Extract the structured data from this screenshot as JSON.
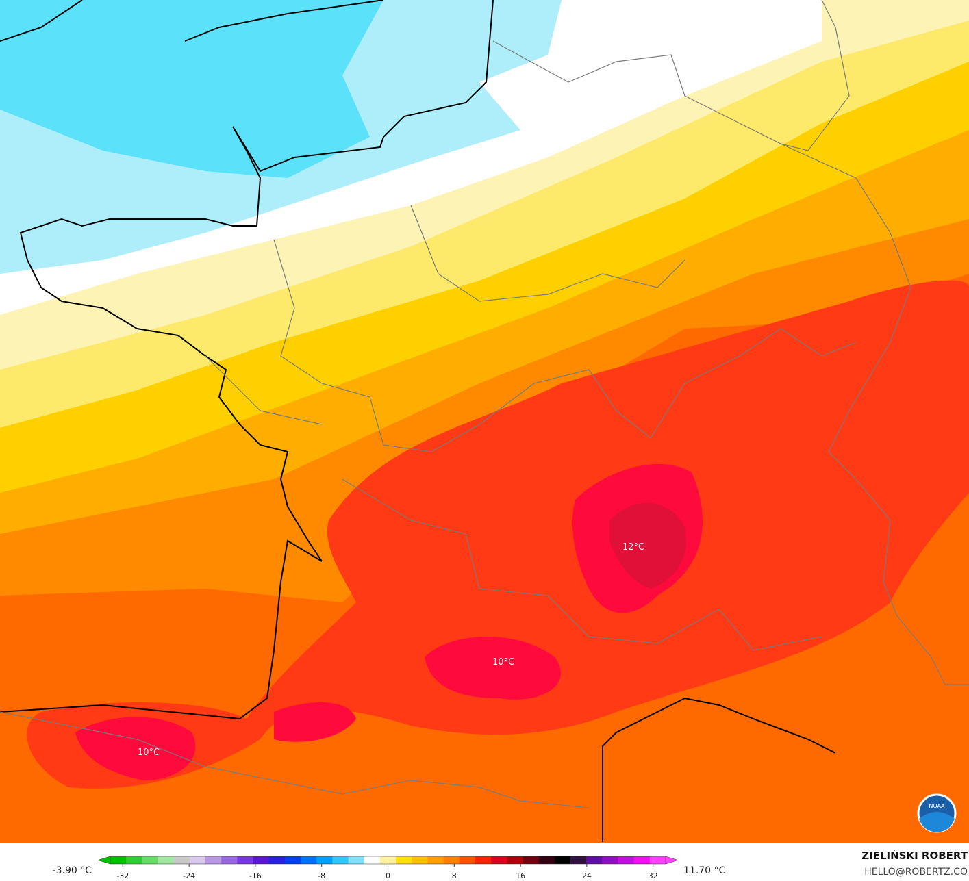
{
  "map": {
    "labels": [
      "12°C",
      "10°C",
      "10°C"
    ]
  },
  "colorbar": {
    "min_label": "-3.90 °C",
    "max_label": "11.70 °C",
    "range": [
      -35,
      35
    ],
    "ticks": [
      -32,
      -24,
      -16,
      -8,
      0,
      8,
      16,
      24,
      32
    ],
    "colors": [
      "#00c000",
      "#33cc33",
      "#66dd66",
      "#a0e6a0",
      "#c8c8c8",
      "#d8c8ec",
      "#b898e4",
      "#9868e0",
      "#7838e0",
      "#5a18d0",
      "#2a20e0",
      "#0040f0",
      "#0070ff",
      "#00a0ff",
      "#30c8ff",
      "#80e0ff",
      "#ffffff",
      "#fff0a0",
      "#ffe000",
      "#ffc000",
      "#ffa000",
      "#ff8000",
      "#ff5000",
      "#ff2000",
      "#e00020",
      "#b00010",
      "#700010",
      "#300010",
      "#000000",
      "#301040",
      "#6010a0",
      "#9010c0",
      "#c010e0",
      "#f010f0",
      "#ff40ff"
    ]
  },
  "credits": {
    "author": "ZIELIŃSKI ROBERT",
    "email": "HELLO@ROBERTZ.CO",
    "logo": "NOAA"
  }
}
